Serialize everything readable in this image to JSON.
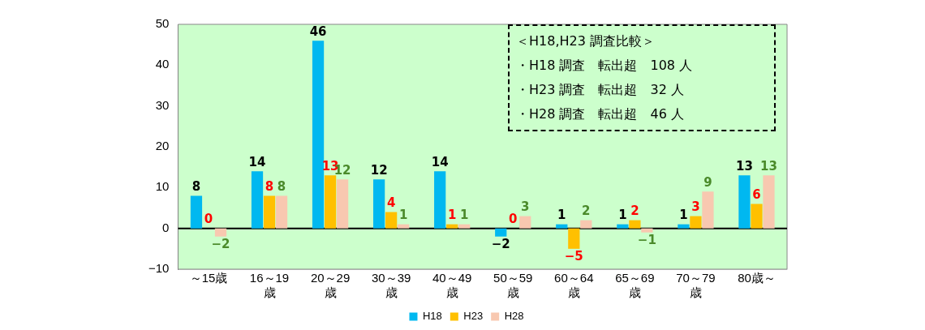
{
  "chart_data": {
    "type": "bar",
    "categories": [
      "～15歳",
      "16～19歳",
      "20～29歳",
      "30～39歳",
      "40～49歳",
      "50～59歳",
      "60～64歳",
      "65～69歳",
      "70～79歳",
      "80歳～"
    ],
    "series": [
      {
        "name": "H18",
        "color": "#00b8f0",
        "values": [
          8,
          14,
          46,
          12,
          14,
          -2,
          1,
          1,
          1,
          13
        ]
      },
      {
        "name": "H23",
        "color": "#ffc000",
        "values": [
          0,
          8,
          13,
          4,
          1,
          0,
          -5,
          2,
          3,
          6
        ]
      },
      {
        "name": "H28",
        "color": "#f8c8b0",
        "values": [
          -2,
          8,
          12,
          1,
          1,
          3,
          2,
          -1,
          9,
          13
        ]
      }
    ],
    "ylim": [
      -10,
      50
    ],
    "yticks": [
      -10,
      0,
      10,
      20,
      30,
      40,
      50
    ],
    "grid": false,
    "legend": "bottom",
    "data_labels": true,
    "ref_lines": [
      {
        "axis": "y",
        "value": 0,
        "color": "#000000"
      }
    ],
    "annotations": [
      "＜H18,H23 調査比較＞",
      "・H18 調査　転出超　108 人",
      "・H23 調査　転出超　32 人",
      "・H28 調査　転出超　46 人"
    ]
  }
}
